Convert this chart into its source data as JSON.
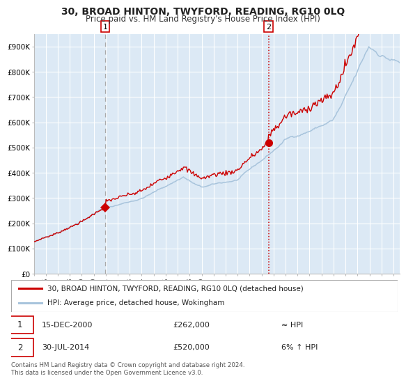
{
  "title": "30, BROAD HINTON, TWYFORD, READING, RG10 0LQ",
  "subtitle": "Price paid vs. HM Land Registry's House Price Index (HPI)",
  "ylabel_ticks": [
    "£0",
    "£100K",
    "£200K",
    "£300K",
    "£400K",
    "£500K",
    "£600K",
    "£700K",
    "£800K",
    "£900K"
  ],
  "ytick_values": [
    0,
    100000,
    200000,
    300000,
    400000,
    500000,
    600000,
    700000,
    800000,
    900000
  ],
  "ylim": [
    0,
    950000
  ],
  "xlim_start": 1995.0,
  "xlim_end": 2025.5,
  "bg_color": "#dce9f5",
  "grid_color": "#ffffff",
  "red_line_color": "#cc0000",
  "blue_line_color": "#a8c4dc",
  "marker1_x": 2000.958,
  "marker1_y": 262000,
  "marker2_x": 2014.58,
  "marker2_y": 520000,
  "vline1_x": 2000.958,
  "vline2_x": 2014.58,
  "legend1_label": "30, BROAD HINTON, TWYFORD, READING, RG10 0LQ (detached house)",
  "legend2_label": "HPI: Average price, detached house, Wokingham",
  "note1_date": "15-DEC-2000",
  "note1_price": "£262,000",
  "note1_hpi": "≈ HPI",
  "note2_date": "30-JUL-2014",
  "note2_price": "£520,000",
  "note2_hpi": "6% ↑ HPI",
  "footer": "Contains HM Land Registry data © Crown copyright and database right 2024.\nThis data is licensed under the Open Government Licence v3.0.",
  "xtick_years": [
    1995,
    1996,
    1997,
    1998,
    1999,
    2000,
    2001,
    2002,
    2003,
    2004,
    2005,
    2006,
    2007,
    2008,
    2009,
    2010,
    2011,
    2012,
    2013,
    2014,
    2015,
    2016,
    2017,
    2018,
    2019,
    2020,
    2021,
    2022,
    2023,
    2024,
    2025
  ]
}
